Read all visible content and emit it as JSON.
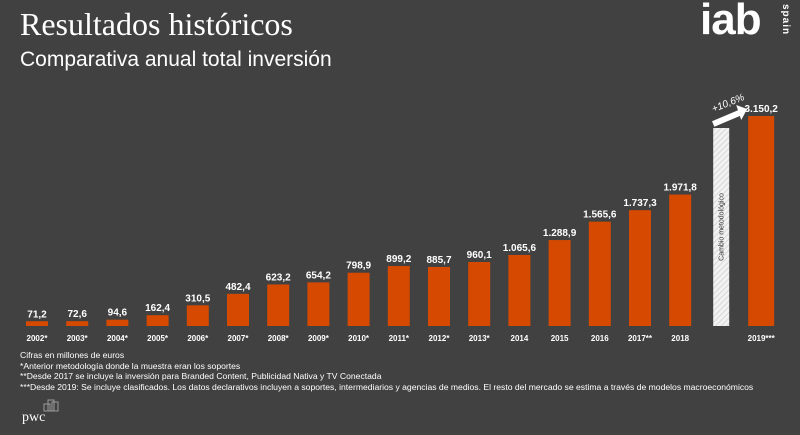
{
  "header": {
    "title": "Resultados históricos",
    "subtitle": "Comparativa anual total inversión"
  },
  "logo": {
    "main": "iab",
    "sub": "spain"
  },
  "footer_logo": {
    "text": "pwc"
  },
  "colors": {
    "background": "#414141",
    "bar": "#d54a00",
    "text": "#ffffff",
    "divider_bar": "#f2f2f2"
  },
  "chart_data": {
    "type": "bar",
    "categories": [
      "2002*",
      "2003*",
      "2004*",
      "2005*",
      "2006*",
      "2007*",
      "2008*",
      "2009*",
      "2010*",
      "2011*",
      "2012*",
      "2013*",
      "2014",
      "2015",
      "2016",
      "2017**",
      "2018",
      "2019***"
    ],
    "values": [
      71.2,
      72.6,
      94.6,
      162.4,
      310.5,
      482.4,
      623.2,
      654.2,
      798.9,
      899.2,
      885.7,
      960.1,
      1065.6,
      1288.9,
      1565.6,
      1737.3,
      1971.8,
      3150.2
    ],
    "value_labels": [
      "71,2",
      "72,6",
      "94,6",
      "162,4",
      "310,5",
      "482,4",
      "623,2",
      "654,2",
      "798,9",
      "899,2",
      "885,7",
      "960,1",
      "1.065,6",
      "1.288,9",
      "1.565,6",
      "1.737,3",
      "1.971,8",
      "3.150,2"
    ],
    "ylim": [
      0,
      3300
    ],
    "grid": false,
    "methodology_break": {
      "label": "Cambio metodológico",
      "after_category": "2018"
    },
    "growth_annotation": "+10,6%"
  },
  "notes": [
    "Cifras en millones de euros",
    "*Anterior metodología donde la muestra eran los soportes",
    "**Desde 2017 se incluye la inversión para Branded Content, Publicidad Nativa y TV Conectada",
    "***Desde 2019: Se incluye clasificados. Los datos declarativos incluyen a soportes, intermediarios y agencias de medios. El resto del mercado se estima a través de modelos macroeconómicos"
  ]
}
